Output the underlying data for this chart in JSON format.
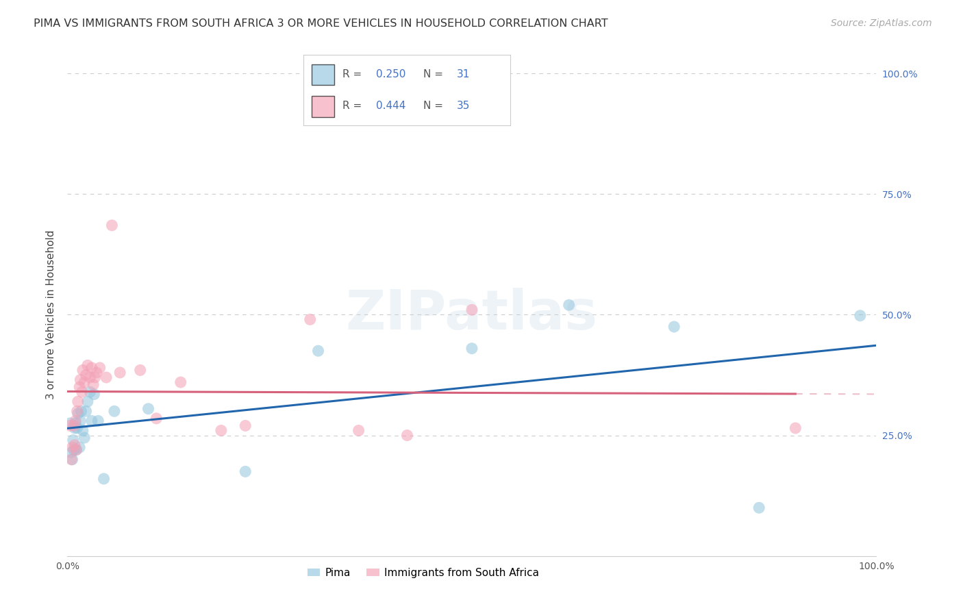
{
  "title": "PIMA VS IMMIGRANTS FROM SOUTH AFRICA 3 OR MORE VEHICLES IN HOUSEHOLD CORRELATION CHART",
  "source": "Source: ZipAtlas.com",
  "ylabel": "3 or more Vehicles in Household",
  "xlim": [
    0.0,
    1.0
  ],
  "ylim": [
    0.0,
    1.0
  ],
  "pima_color": "#92c5de",
  "immig_color": "#f4a0b5",
  "pima_line_color": "#2166ac",
  "immig_line_color": "#d6617b",
  "background_color": "#ffffff",
  "grid_color": "#cccccc",
  "title_fontsize": 11.5,
  "axis_label_fontsize": 11,
  "tick_fontsize": 10,
  "legend_fontsize": 11,
  "source_fontsize": 10,
  "pima_x": [
    0.003,
    0.005,
    0.006,
    0.007,
    0.008,
    0.009,
    0.01,
    0.011,
    0.012,
    0.013,
    0.015,
    0.016,
    0.017,
    0.019,
    0.021,
    0.023,
    0.025,
    0.028,
    0.03,
    0.033,
    0.038,
    0.045,
    0.058,
    0.1,
    0.22,
    0.31,
    0.5,
    0.62,
    0.75,
    0.855,
    0.98
  ],
  "pima_y": [
    0.275,
    0.215,
    0.2,
    0.24,
    0.22,
    0.265,
    0.275,
    0.22,
    0.265,
    0.295,
    0.225,
    0.28,
    0.3,
    0.26,
    0.245,
    0.3,
    0.32,
    0.34,
    0.28,
    0.335,
    0.28,
    0.16,
    0.3,
    0.305,
    0.175,
    0.425,
    0.43,
    0.52,
    0.475,
    0.1,
    0.498
  ],
  "immig_x": [
    0.003,
    0.005,
    0.006,
    0.008,
    0.009,
    0.01,
    0.011,
    0.012,
    0.013,
    0.015,
    0.016,
    0.018,
    0.019,
    0.021,
    0.023,
    0.025,
    0.028,
    0.03,
    0.032,
    0.034,
    0.036,
    0.04,
    0.048,
    0.055,
    0.065,
    0.09,
    0.11,
    0.14,
    0.19,
    0.22,
    0.3,
    0.36,
    0.42,
    0.5,
    0.9
  ],
  "immig_y": [
    0.27,
    0.2,
    0.225,
    0.27,
    0.23,
    0.28,
    0.22,
    0.3,
    0.32,
    0.35,
    0.365,
    0.34,
    0.385,
    0.36,
    0.375,
    0.395,
    0.37,
    0.39,
    0.355,
    0.37,
    0.38,
    0.39,
    0.37,
    0.685,
    0.38,
    0.385,
    0.285,
    0.36,
    0.26,
    0.27,
    0.49,
    0.26,
    0.25,
    0.51,
    0.265
  ]
}
